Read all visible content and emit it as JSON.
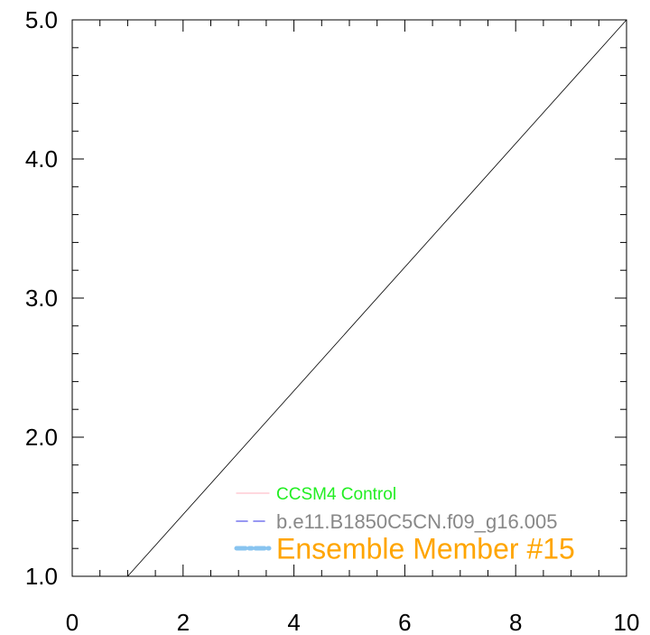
{
  "chart_data": {
    "type": "line",
    "title": "",
    "xlabel": "",
    "ylabel": "",
    "xlim": [
      0,
      10
    ],
    "ylim": [
      1,
      5
    ],
    "x_ticks": [
      0,
      2,
      4,
      6,
      8,
      10
    ],
    "x_tick_labels": [
      "0",
      "2",
      "4",
      "6",
      "8",
      "10"
    ],
    "y_ticks": [
      1,
      2,
      3,
      4,
      5
    ],
    "y_tick_labels": [
      "1.0",
      "2.0",
      "3.0",
      "4.0",
      "5.0"
    ],
    "grid": false,
    "series": [
      {
        "x": [
          1,
          10
        ],
        "y": [
          1,
          5
        ],
        "color": "#000000"
      }
    ],
    "legend": {
      "placement": "bottom-right",
      "entries": [
        {
          "label": "CCSM4 Control",
          "text_color": "#22ee22",
          "line_color": "#ffc0cb",
          "style": "solid"
        },
        {
          "label": "b.e11.B1850C5CN.f09_g16.005",
          "text_color": "#888888",
          "line_color": "#7777ee",
          "style": "dashed"
        },
        {
          "label": "Ensemble Member #15",
          "text_color": "#ffa500",
          "line_color": "#88c4f0",
          "style": "dash-dot"
        }
      ]
    }
  }
}
